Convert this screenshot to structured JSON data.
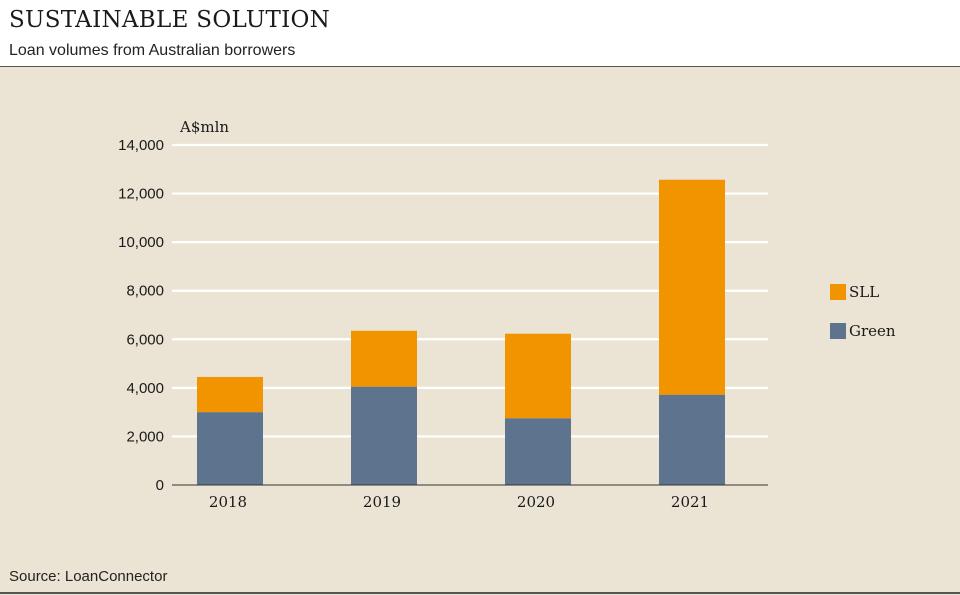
{
  "header": {
    "title": "SUSTAINABLE SOLUTION",
    "subtitle": "Loan volumes from Australian borrowers"
  },
  "footer": {
    "source": "Source: LoanConnector"
  },
  "colors": {
    "green": "#5d738e",
    "sll": "#f29400",
    "grid": "#ffffff"
  },
  "chart_data": {
    "type": "bar",
    "stacked": true,
    "title": "SUSTAINABLE SOLUTION",
    "subtitle": "Loan volumes from Australian borrowers",
    "ylabel": "A$mln",
    "xlabel": "",
    "ylim": [
      0,
      14000
    ],
    "yticks": [
      0,
      2000,
      4000,
      6000,
      8000,
      10000,
      12000,
      14000
    ],
    "ytick_labels": [
      "0",
      "2,000",
      "4,000",
      "6,000",
      "8,000",
      "10,000",
      "12,000",
      "14,000"
    ],
    "categories": [
      "2018",
      "2019",
      "2020",
      "2021"
    ],
    "series": [
      {
        "name": "Green",
        "values": [
          3000,
          4050,
          2750,
          3720
        ]
      },
      {
        "name": "SLL",
        "values": [
          1450,
          2300,
          3480,
          8850
        ]
      }
    ],
    "legend": [
      "SLL",
      "Green"
    ],
    "legend_position": "right",
    "grid": true
  }
}
